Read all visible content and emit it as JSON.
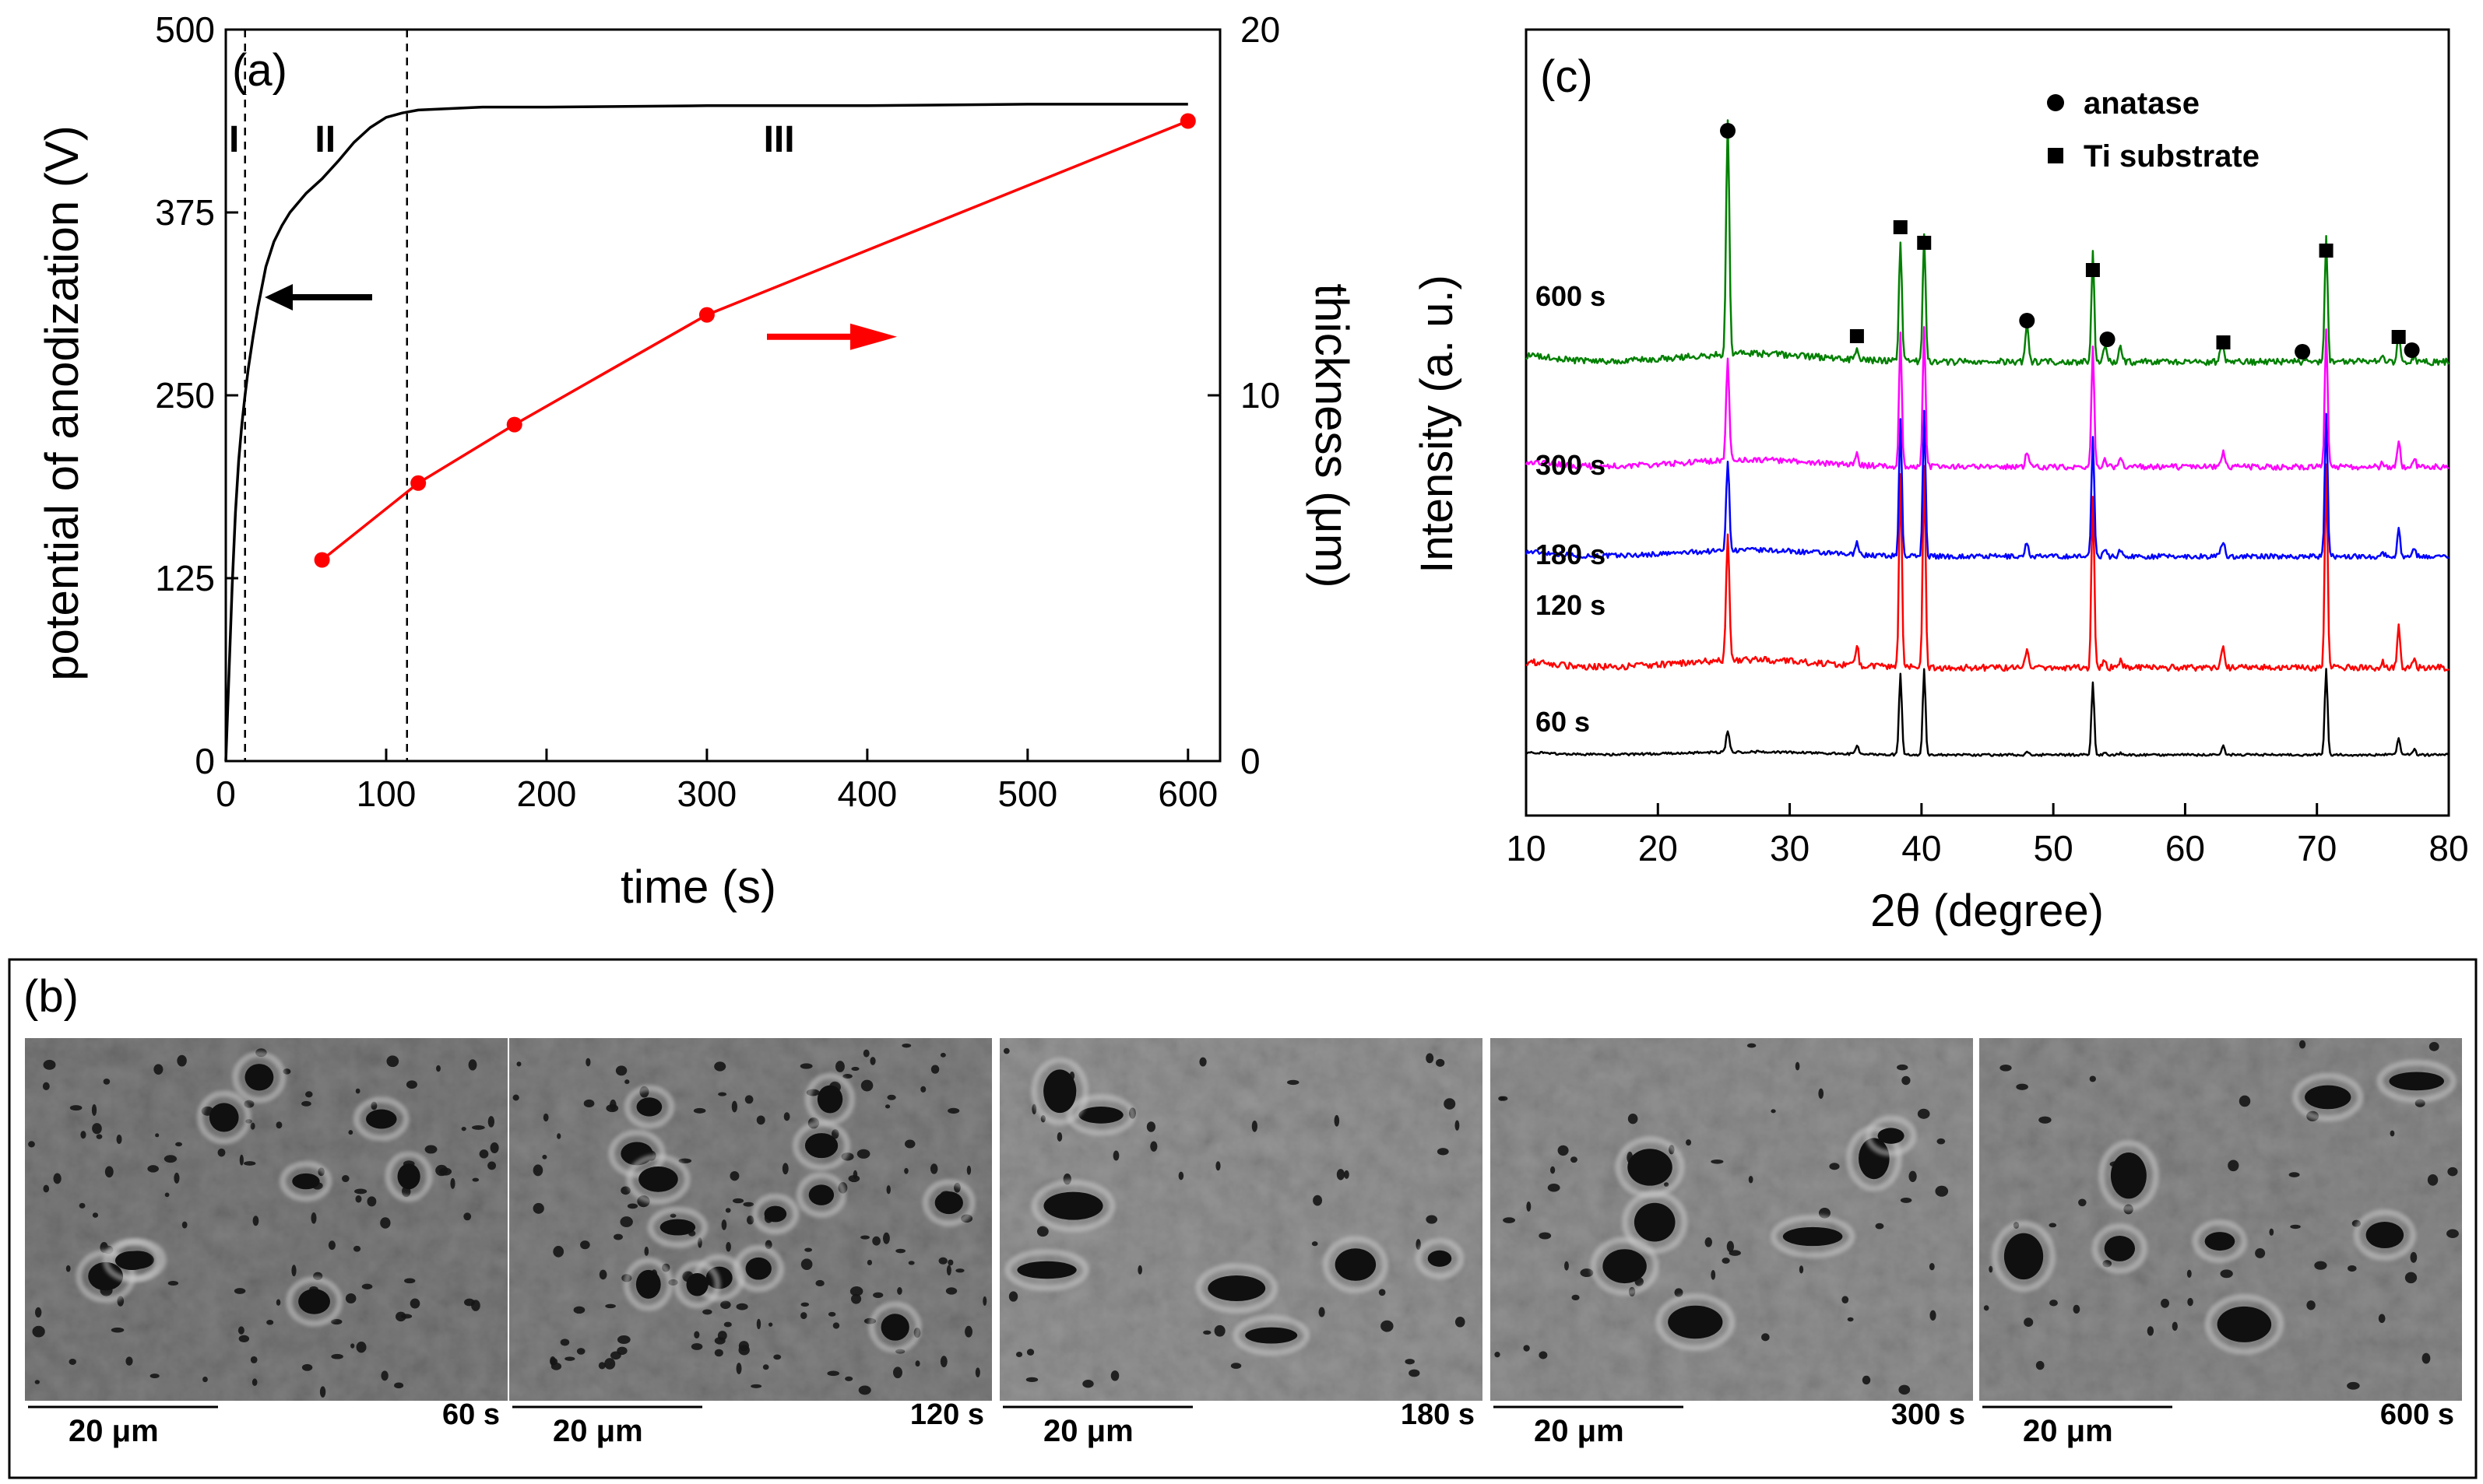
{
  "chart_data": [
    {
      "id": "a",
      "panel_label": "(a)",
      "type": "line",
      "xlabel": "time (s)",
      "ylabel_left": "potential of anodization (V)",
      "ylabel_right": "thickness (μm)",
      "xlim": [
        0,
        620
      ],
      "xticks": [
        0,
        100,
        200,
        300,
        400,
        500,
        600
      ],
      "ylim_left": [
        0,
        500
      ],
      "yticks_left": [
        0,
        125,
        250,
        375,
        500
      ],
      "ylim_right": [
        0,
        20
      ],
      "yticks_right": [
        0,
        10,
        20
      ],
      "regions": [
        {
          "label": "I",
          "x_start": 0,
          "x_end": 12
        },
        {
          "label": "II",
          "x_start": 12,
          "x_end": 113
        },
        {
          "label": "III",
          "x_start": 113,
          "x_end": 620
        }
      ],
      "series": [
        {
          "name": "potential",
          "axis": "left",
          "color": "#000000",
          "x": [
            0,
            2,
            4,
            6,
            8,
            10,
            12,
            14,
            17,
            20,
            25,
            30,
            35,
            40,
            50,
            60,
            70,
            80,
            90,
            100,
            110,
            120,
            140,
            160,
            200,
            300,
            400,
            500,
            600
          ],
          "y": [
            0,
            60,
            120,
            170,
            205,
            230,
            250,
            268,
            290,
            310,
            338,
            355,
            366,
            375,
            388,
            398,
            410,
            423,
            433,
            440,
            443,
            445,
            446,
            447,
            447,
            448,
            448,
            449,
            449
          ]
        },
        {
          "name": "thickness",
          "axis": "right",
          "color": "#ff0000",
          "x": [
            60,
            120,
            180,
            300,
            600
          ],
          "y": [
            5.5,
            7.6,
            9.2,
            12.2,
            17.5
          ]
        }
      ],
      "arrows": [
        {
          "direction": "left",
          "color": "#000000",
          "points_to": "potential"
        },
        {
          "direction": "right",
          "color": "#ff0000",
          "points_to": "thickness"
        }
      ]
    },
    {
      "id": "c",
      "panel_label": "(c)",
      "type": "line",
      "xlabel": "2θ (degree)",
      "ylabel": "Intensity (a. u.)",
      "xlim": [
        10,
        80
      ],
      "xticks": [
        10,
        20,
        30,
        40,
        50,
        60,
        70,
        80
      ],
      "legend": [
        {
          "symbol": "circle",
          "label": "anatase"
        },
        {
          "symbol": "square",
          "label": "Ti substrate"
        }
      ],
      "peaks": {
        "anatase": [
          {
            "pos": 25.3,
            "h": 1.0
          },
          {
            "pos": 48.0,
            "h": 0.16
          },
          {
            "pos": 53.9,
            "h": 0.07
          },
          {
            "pos": 55.1,
            "h": 0.07
          },
          {
            "pos": 62.7,
            "h": 0.05
          },
          {
            "pos": 75.0,
            "h": 0.04
          }
        ],
        "ti_substrate": [
          {
            "pos": 35.1,
            "h": 0.11
          },
          {
            "pos": 38.4,
            "h": 0.95
          },
          {
            "pos": 40.2,
            "h": 1.0
          },
          {
            "pos": 53.0,
            "h": 0.85
          },
          {
            "pos": 62.9,
            "h": 0.1
          },
          {
            "pos": 70.7,
            "h": 1.0
          },
          {
            "pos": 76.2,
            "h": 0.2
          },
          {
            "pos": 77.4,
            "h": 0.06
          }
        ]
      },
      "peak_markers": [
        {
          "symbol": "circle",
          "x": 25.3
        },
        {
          "symbol": "square",
          "x": 35.1
        },
        {
          "symbol": "square",
          "x": 38.4
        },
        {
          "symbol": "square",
          "x": 40.2
        },
        {
          "symbol": "circle",
          "x": 48.0
        },
        {
          "symbol": "square",
          "x": 53.0
        },
        {
          "symbol": "circle",
          "x": 54.1
        },
        {
          "symbol": "square",
          "x": 62.9
        },
        {
          "symbol": "circle",
          "x": 68.9
        },
        {
          "symbol": "square",
          "x": 70.7
        },
        {
          "symbol": "square",
          "x": 76.2
        },
        {
          "symbol": "circle",
          "x": 77.2
        }
      ],
      "series": [
        {
          "name": "60 s",
          "color": "#000000",
          "anatase_scale": 0.25,
          "ti_scale": 1.0
        },
        {
          "name": "120 s",
          "color": "#ff0000",
          "anatase_scale": 0.55,
          "ti_scale": 0.9
        },
        {
          "name": "180 s",
          "color": "#0000ff",
          "anatase_scale": 0.5,
          "ti_scale": 0.8
        },
        {
          "name": "300 s",
          "color": "#ff00ff",
          "anatase_scale": 0.5,
          "ti_scale": 0.7
        },
        {
          "name": "600 s",
          "color": "#008000",
          "anatase_scale": 1.0,
          "ti_scale": 0.55
        }
      ]
    }
  ],
  "panel_b": {
    "label": "(b)",
    "scale_bar_text": "20 μm",
    "images": [
      {
        "time": "60 s"
      },
      {
        "time": "120 s"
      },
      {
        "time": "180 s"
      },
      {
        "time": "300 s"
      },
      {
        "time": "600 s"
      }
    ]
  }
}
